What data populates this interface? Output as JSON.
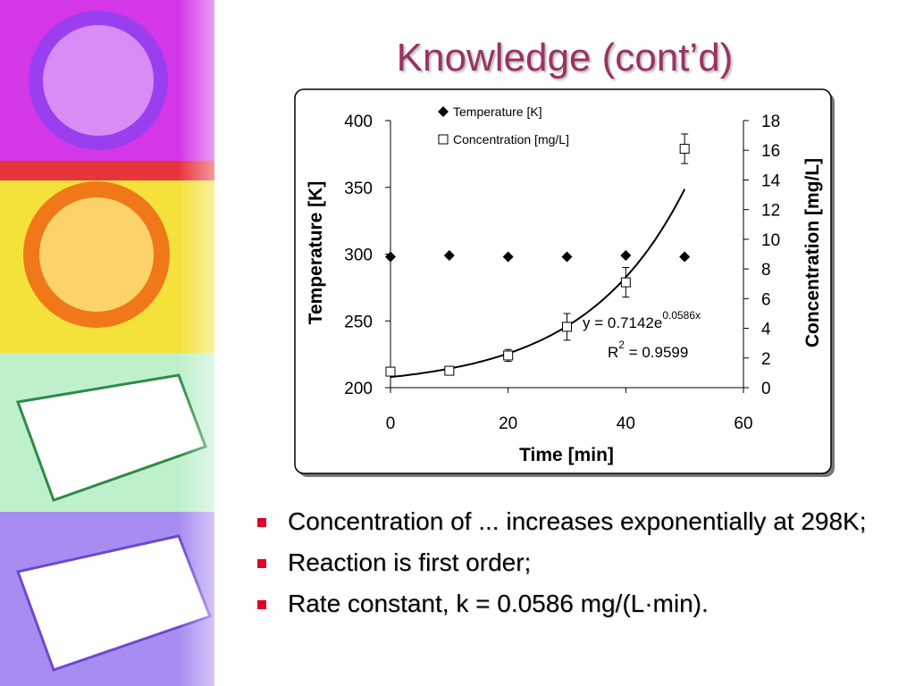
{
  "slide": {
    "title": "Knowledge (cont’d)",
    "bullets": [
      "Concentration of ... increases exponentially at 298K;",
      "Reaction is first order;",
      "Rate constant, k = 0.0586 mg/(L·min)."
    ]
  },
  "chart_data": {
    "type": "scatter",
    "x": [
      0,
      10,
      20,
      30,
      40,
      50
    ],
    "series": [
      {
        "name": "Temperature [K]",
        "color": "#000000",
        "marker": "diamond",
        "values": [
          298,
          299,
          298,
          298,
          299,
          298
        ]
      },
      {
        "name": "Concentration [mg/L]",
        "color": "#000000",
        "marker": "square-open",
        "axis": "y2",
        "values": [
          1.08,
          1.14,
          2.17,
          4.1,
          7.1,
          16.1
        ],
        "errors": [
          null,
          null,
          0.4,
          0.9,
          1.0,
          1.0
        ]
      }
    ],
    "trendline": {
      "a": 0.7142,
      "b": 0.0586,
      "axis": "y2",
      "x_range": [
        0,
        50
      ]
    },
    "annotations": {
      "equation": "y = 0.7142e",
      "exponent": "0.0586x",
      "r": "R",
      "r_power": "2",
      "r_value": " = 0.9599"
    },
    "xlabel": "Time [min]",
    "ylabel": "Temperature [K]",
    "y2label": "Concentration [mg/L]",
    "xlim": [
      0,
      60
    ],
    "xticks": [
      0,
      20,
      40,
      60
    ],
    "ylim": [
      200,
      400
    ],
    "yticks": [
      200,
      250,
      300,
      350,
      400
    ],
    "y2lim": [
      0,
      18
    ],
    "y2ticks": [
      0,
      2,
      4,
      6,
      8,
      10,
      12,
      14,
      16,
      18
    ],
    "legend": "top"
  }
}
